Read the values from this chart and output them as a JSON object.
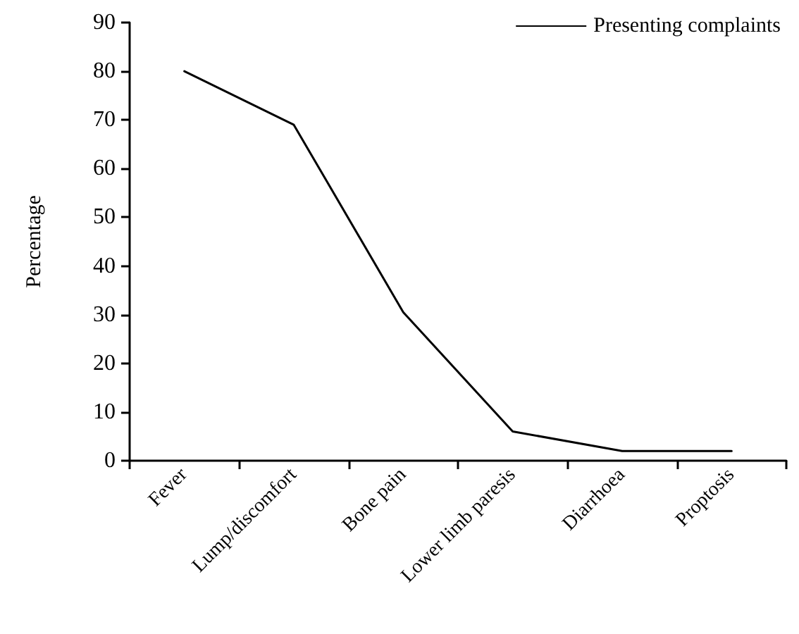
{
  "chart_data": {
    "type": "line",
    "ylabel": "Percentage",
    "categories": [
      "Fever",
      "Lump/discomfort",
      "Bone pain",
      "Lower limb paresis",
      "Diarrhoea",
      "Proptosis"
    ],
    "series": [
      {
        "name": "Presenting complaints",
        "color": "#000000",
        "values": [
          80,
          69,
          30.5,
          6,
          2,
          2
        ]
      }
    ],
    "ylim": [
      0,
      90
    ],
    "yticks": [
      0,
      10,
      20,
      30,
      40,
      50,
      60,
      70,
      80,
      90
    ],
    "grid": false,
    "legend": "top right",
    "marker": "none",
    "line_style": "solid"
  }
}
